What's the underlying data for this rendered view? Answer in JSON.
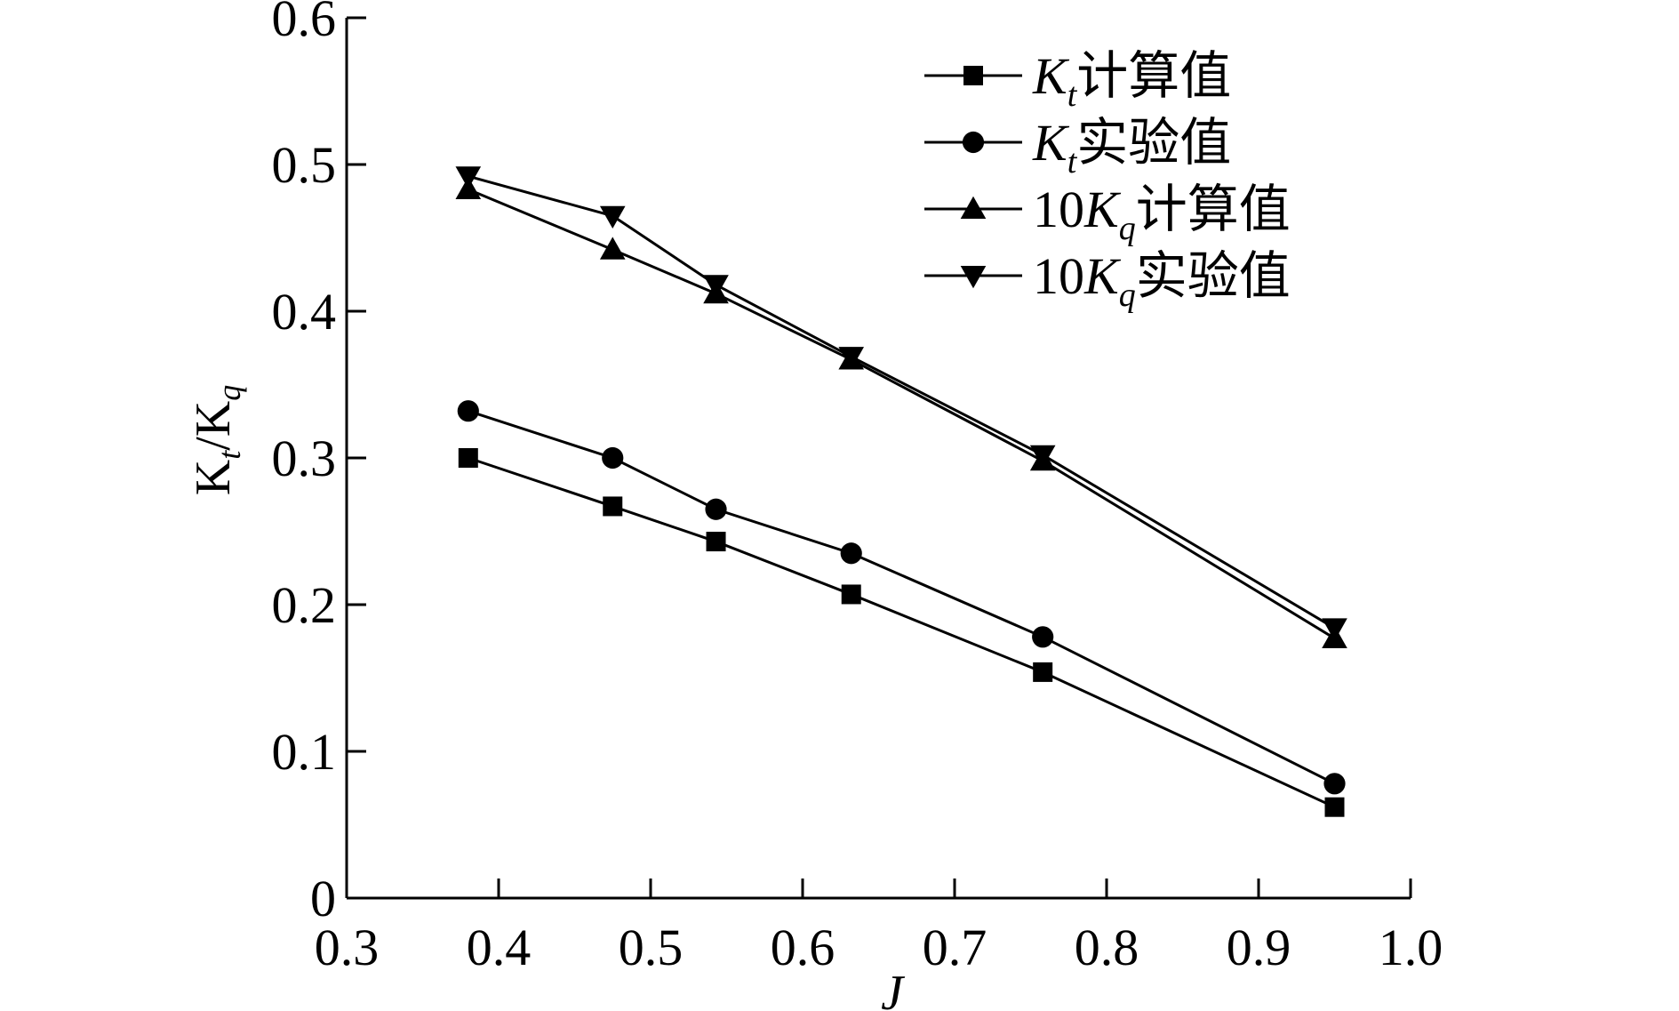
{
  "chart_data": {
    "type": "line",
    "title": "",
    "xlabel": "J",
    "ylabel": "Kt/Kq",
    "ylabel_parts": {
      "main1": "K",
      "sub1": "t",
      "sep": "/K",
      "sub2": "q"
    },
    "xlim": [
      0.3,
      1.0
    ],
    "ylim": [
      0,
      0.6
    ],
    "x_ticks": [
      0.3,
      0.4,
      0.5,
      0.6,
      0.7,
      0.8,
      0.9,
      1.0
    ],
    "x_tick_labels": [
      "0.3",
      "0.4",
      "0.5",
      "0.6",
      "0.7",
      "0.8",
      "0.9",
      "1.0"
    ],
    "y_ticks": [
      0,
      0.1,
      0.2,
      0.3,
      0.4,
      0.5,
      0.6
    ],
    "y_tick_labels": [
      "0",
      "0.1",
      "0.2",
      "0.3",
      "0.4",
      "0.5",
      "0.6"
    ],
    "grid": false,
    "legend_position": "top-right",
    "color": "#000000",
    "x": [
      0.38,
      0.475,
      0.543,
      0.632,
      0.758,
      0.95
    ],
    "series": [
      {
        "name": "Kt计算值",
        "name_parts": {
          "prefix": "",
          "k": "K",
          "sub": "t",
          "suffix": "计算值"
        },
        "marker": "square",
        "values": [
          0.3,
          0.267,
          0.243,
          0.207,
          0.154,
          0.062
        ]
      },
      {
        "name": "Kt实验值",
        "name_parts": {
          "prefix": "",
          "k": "K",
          "sub": "t",
          "suffix": "实验值"
        },
        "marker": "circle",
        "values": [
          0.332,
          0.3,
          0.265,
          0.235,
          0.178,
          0.078
        ]
      },
      {
        "name": "10Kq计算值",
        "name_parts": {
          "prefix": "10",
          "k": "K",
          "sub": "q",
          "suffix": "计算值"
        },
        "marker": "triangle-up",
        "values": [
          0.483,
          0.442,
          0.412,
          0.367,
          0.298,
          0.177
        ]
      },
      {
        "name": "10Kq实验值",
        "name_parts": {
          "prefix": "10",
          "k": "K",
          "sub": "q",
          "suffix": "实验值"
        },
        "marker": "triangle-down",
        "values": [
          0.492,
          0.465,
          0.418,
          0.369,
          0.302,
          0.184
        ]
      }
    ]
  }
}
